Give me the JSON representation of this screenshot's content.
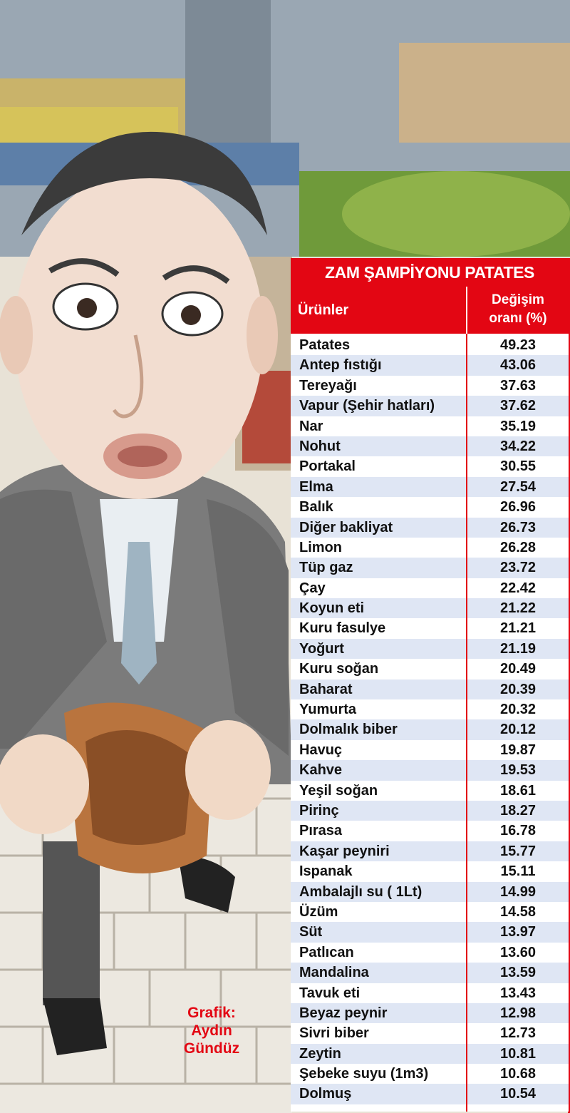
{
  "title": "ZAM ŞAMPİYONU PATATES",
  "header": {
    "product": "Ürünler",
    "change_line1": "Değişim",
    "change_line2": "oranı (%)"
  },
  "credit": {
    "line1": "Grafik:",
    "line2": "Aydın",
    "line3": "Gündüz"
  },
  "colors": {
    "accent": "#e30613",
    "stripe": "#dfe6f4"
  },
  "chart_data": {
    "type": "table",
    "title": "ZAM ŞAMPİYONU PATATES",
    "columns": [
      "Ürünler",
      "Değişim oranı (%)"
    ],
    "rows": [
      {
        "name": "Patates",
        "value": "49.23"
      },
      {
        "name": "Antep fıstığı",
        "value": "43.06"
      },
      {
        "name": "Tereyağı",
        "value": "37.63"
      },
      {
        "name": "Vapur (Şehir hatları)",
        "value": "37.62"
      },
      {
        "name": "Nar",
        "value": "35.19"
      },
      {
        "name": "Nohut",
        "value": "34.22"
      },
      {
        "name": "Portakal",
        "value": "30.55"
      },
      {
        "name": "Elma",
        "value": "27.54"
      },
      {
        "name": "Balık",
        "value": "26.96"
      },
      {
        "name": "Diğer bakliyat",
        "value": "26.73"
      },
      {
        "name": "Limon",
        "value": "26.28"
      },
      {
        "name": "Tüp gaz",
        "value": "23.72"
      },
      {
        "name": "Çay",
        "value": "22.42"
      },
      {
        "name": "Koyun eti",
        "value": "21.22"
      },
      {
        "name": "Kuru fasulye",
        "value": "21.21"
      },
      {
        "name": "Yoğurt",
        "value": "21.19"
      },
      {
        "name": "Kuru soğan",
        "value": "20.49"
      },
      {
        "name": "Baharat",
        "value": "20.39"
      },
      {
        "name": "Yumurta",
        "value": "20.32"
      },
      {
        "name": "Dolmalık biber",
        "value": "20.12"
      },
      {
        "name": "Havuç",
        "value": "19.87"
      },
      {
        "name": "Kahve",
        "value": "19.53"
      },
      {
        "name": "Yeşil soğan",
        "value": "18.61"
      },
      {
        "name": "Pirinç",
        "value": "18.27"
      },
      {
        "name": "Pırasa",
        "value": "16.78"
      },
      {
        "name": "Kaşar peyniri",
        "value": "15.77"
      },
      {
        "name": "Ispanak",
        "value": "15.11"
      },
      {
        "name": "Ambalajlı su ( 1Lt)",
        "value": "14.99"
      },
      {
        "name": "Üzüm",
        "value": "14.58"
      },
      {
        "name": "Süt",
        "value": "13.97"
      },
      {
        "name": "Patlıcan",
        "value": "13.60"
      },
      {
        "name": "Mandalina",
        "value": "13.59"
      },
      {
        "name": "Tavuk eti",
        "value": "13.43"
      },
      {
        "name": "Beyaz peynir",
        "value": "12.98"
      },
      {
        "name": "Sivri biber",
        "value": "12.73"
      },
      {
        "name": "Zeytin",
        "value": "10.81"
      },
      {
        "name": "Şebeke suyu (1m3)",
        "value": "10.68"
      },
      {
        "name": "Dolmuş",
        "value": "10.54"
      }
    ]
  }
}
